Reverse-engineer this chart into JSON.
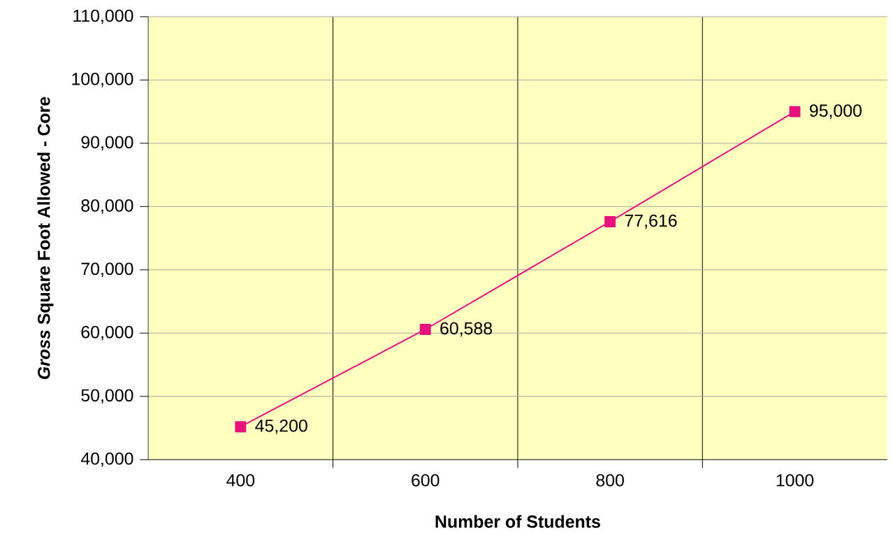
{
  "chart_data": {
    "type": "line",
    "xlabel": "Number of Students",
    "ylabel": "*Gross* Square Foot Allowed - Core",
    "categories": [
      "400",
      "600",
      "800",
      "1000"
    ],
    "series": [
      {
        "color": "#e8127c",
        "values": [
          45200,
          60588,
          77616,
          95000
        ],
        "value_labels": [
          "45,200",
          "60,588",
          "77,616",
          "95,000"
        ]
      }
    ],
    "ylim": [
      40000,
      110000
    ],
    "yticks": [
      {
        "value": 40000,
        "label": "40,000"
      },
      {
        "value": 50000,
        "label": "50,000"
      },
      {
        "value": 60000,
        "label": "60,000"
      },
      {
        "value": 70000,
        "label": "70,000"
      },
      {
        "value": 80000,
        "label": "80,000"
      },
      {
        "value": 90000,
        "label": "90,000"
      },
      {
        "value": 100000,
        "label": "100,000"
      },
      {
        "value": 110000,
        "label": "110,000"
      }
    ],
    "grid": true,
    "marker": "square",
    "line_style": "solid"
  }
}
